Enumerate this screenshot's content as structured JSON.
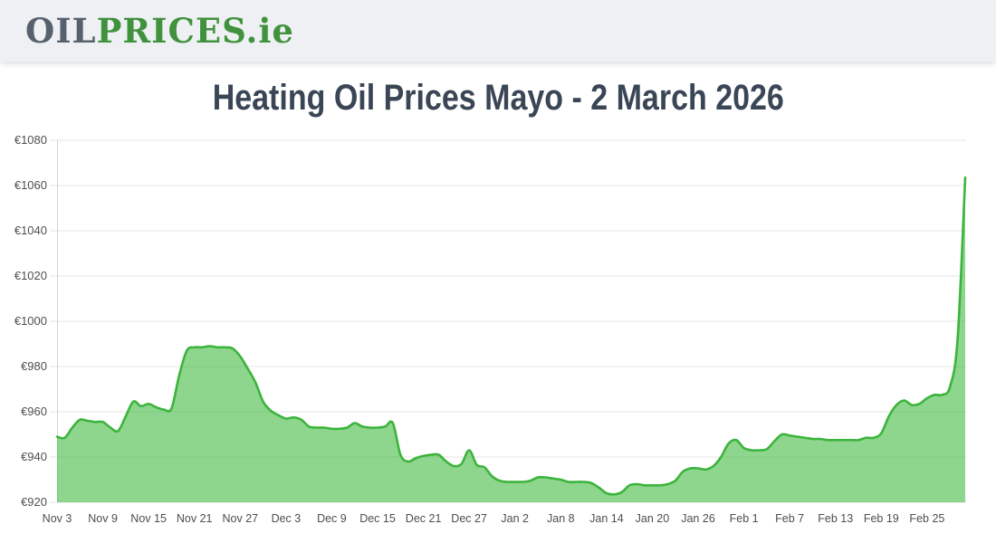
{
  "header": {
    "logo_oil": "OIL",
    "logo_prices": "PRICES",
    "logo_suffix": ".ie"
  },
  "page_title": "Heating Oil Prices Mayo - 2 March 2026",
  "colors": {
    "header_bg": "#eef0f4",
    "logo_gray": "#57616e",
    "logo_green": "#41923c",
    "title_text": "#3a4656",
    "line": "#3cb43c",
    "fill": "rgba(61,183,61,0.58)",
    "grid": "#e4e4e4",
    "axis_line": "#d4d4d4",
    "axis_text": "#4e4e4e"
  },
  "chart_data": {
    "type": "area",
    "title": "Heating Oil Prices Mayo - 2 March 2026",
    "grid": true,
    "legend": false,
    "y_axis": {
      "currency_prefix": "€",
      "range": [
        920,
        1080
      ],
      "ticks": [
        920,
        940,
        960,
        980,
        1000,
        1020,
        1040,
        1060,
        1080
      ],
      "tick_labels": [
        "€920",
        "€940",
        "€960",
        "€980",
        "€1000",
        "€1020",
        "€1040",
        "€1060",
        "€1080"
      ]
    },
    "x_axis": {
      "start": "Nov 3",
      "end": "Mar 2",
      "tick_interval_days": 6,
      "tick_labels": [
        "Nov 3",
        "Nov 9",
        "Nov 15",
        "Nov 21",
        "Nov 27",
        "Dec 3",
        "Dec 9",
        "Dec 15",
        "Dec 21",
        "Dec 27",
        "Jan 2",
        "Jan 8",
        "Jan 14",
        "Jan 20",
        "Jan 26",
        "Feb 1",
        "Feb 7",
        "Feb 13",
        "Feb 19",
        "Feb 25"
      ]
    },
    "series": [
      {
        "name": "price",
        "cadence": "daily",
        "values": [
          949,
          948.5,
          953,
          956.5,
          956,
          955.5,
          955.5,
          953,
          951.5,
          958,
          964.5,
          962.5,
          963.5,
          962,
          961,
          961.5,
          976,
          987,
          988.5,
          988.5,
          989,
          988.5,
          988.5,
          988,
          984.5,
          979,
          973,
          964.5,
          960.5,
          958.5,
          957,
          957.5,
          956.5,
          953.5,
          953,
          953,
          952.5,
          952.5,
          953,
          955,
          953.5,
          953,
          953,
          953.5,
          955,
          941,
          938,
          939.5,
          940.5,
          941,
          941,
          938,
          936,
          937,
          943,
          936.5,
          935.5,
          931.5,
          929.5,
          929,
          929,
          929,
          929.5,
          931,
          931,
          930.5,
          930,
          929,
          929,
          929,
          928.5,
          926.5,
          924,
          923.5,
          924.5,
          927.5,
          928,
          927.5,
          927.5,
          927.5,
          928,
          929.5,
          933.5,
          935,
          935,
          934.5,
          936,
          940,
          946,
          947.5,
          944,
          943,
          943,
          943.5,
          947,
          950,
          949.5,
          949,
          948.5,
          948,
          948,
          947.5,
          947.5,
          947.5,
          947.5,
          947.5,
          948.5,
          948.5,
          950.5,
          958,
          963,
          965,
          963,
          963.5,
          966,
          967.5,
          967.5,
          971,
          992,
          1063.5
        ]
      }
    ]
  }
}
